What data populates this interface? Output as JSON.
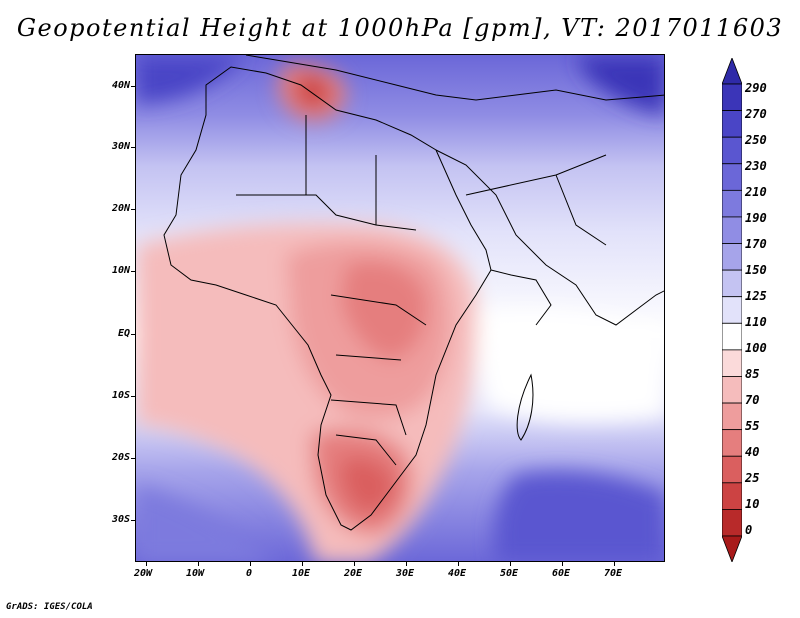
{
  "title": "Geopotential Height at 1000hPa [gpm], VT: 2017011603",
  "credit": "GrADS: IGES/COLA",
  "map": {
    "variable": "Geopotential Height",
    "level": "1000hPa",
    "units": "gpm",
    "valid_time": "2017011603",
    "region": "Africa",
    "lon_range": [
      -24,
      80
    ],
    "lat_range": [
      -37,
      46
    ]
  },
  "axes": {
    "lat_labels": [
      "40N",
      "30N",
      "20N",
      "10N",
      "EQ",
      "10S",
      "20S",
      "30S"
    ],
    "lat_values": [
      40,
      30,
      20,
      10,
      0,
      -10,
      -20,
      -30
    ],
    "lon_labels": [
      "20W",
      "10W",
      "0",
      "10E",
      "20E",
      "30E",
      "40E",
      "50E",
      "60E",
      "70E"
    ],
    "lon_values": [
      -20,
      -10,
      0,
      10,
      20,
      30,
      40,
      50,
      60,
      70
    ]
  },
  "colorbar": {
    "levels": [
      "290",
      "270",
      "250",
      "230",
      "210",
      "190",
      "170",
      "150",
      "125",
      "110",
      "100",
      "85",
      "70",
      "55",
      "40",
      "25",
      "10",
      "0"
    ],
    "colors": [
      "#2f2aa8",
      "#3b35b8",
      "#4a45c6",
      "#5a56d0",
      "#6b67d8",
      "#7d7ade",
      "#908de4",
      "#a6a4ea",
      "#c4c3f2",
      "#e2e2fa",
      "#ffffff",
      "#fbdada",
      "#f5bcbc",
      "#ee9d9d",
      "#e57e7e",
      "#da5f5f",
      "#cc4343",
      "#b82a2a",
      "#a81a1a"
    ]
  }
}
